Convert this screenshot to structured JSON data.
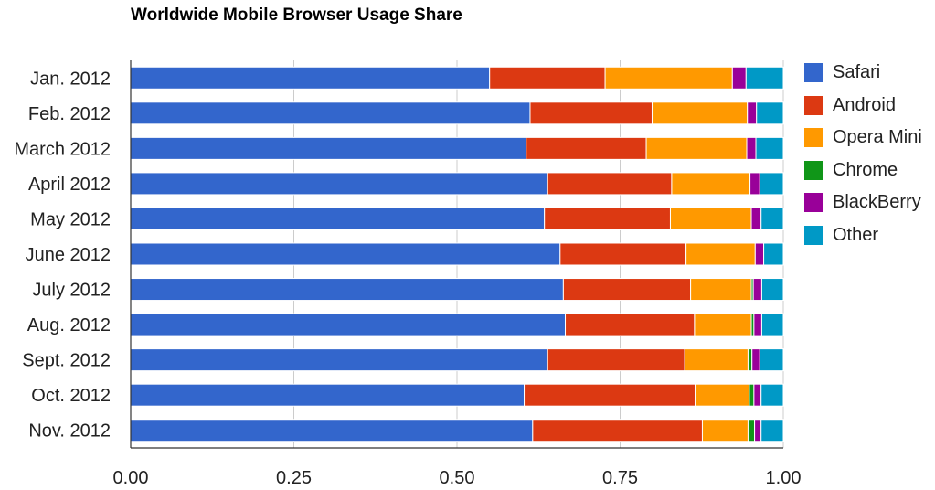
{
  "chart_data": {
    "type": "bar",
    "orientation": "horizontal",
    "stacked": true,
    "title": "Worldwide Mobile Browser Usage Share",
    "categories": [
      "Jan. 2012",
      "Feb. 2012",
      "March 2012",
      "April 2012",
      "May 2012",
      "June 2012",
      "July 2012",
      "Aug. 2012",
      "Sept. 2012",
      "Oct. 2012",
      "Nov. 2012"
    ],
    "xlim": [
      0,
      1
    ],
    "xticks": [
      "0.00",
      "0.25",
      "0.50",
      "0.75",
      "1.00"
    ],
    "xtick_values": [
      0,
      0.25,
      0.5,
      0.75,
      1
    ],
    "grid": true,
    "legend_position": "right",
    "series": [
      {
        "name": "Safari",
        "color": "#3366cc",
        "values": [
          0.55,
          0.612,
          0.606,
          0.639,
          0.634,
          0.658,
          0.663,
          0.666,
          0.639,
          0.603,
          0.616
        ]
      },
      {
        "name": "Android",
        "color": "#dc3912",
        "values": [
          0.177,
          0.187,
          0.184,
          0.19,
          0.193,
          0.193,
          0.195,
          0.198,
          0.21,
          0.262,
          0.26
        ]
      },
      {
        "name": "Opera Mini",
        "color": "#ff9900",
        "values": [
          0.195,
          0.146,
          0.154,
          0.12,
          0.124,
          0.106,
          0.093,
          0.087,
          0.097,
          0.083,
          0.07
        ]
      },
      {
        "name": "Chrome",
        "color": "#109618",
        "values": [
          0.0,
          0.0,
          0.0,
          0.0,
          0.0,
          0.0,
          0.003,
          0.004,
          0.006,
          0.007,
          0.01
        ]
      },
      {
        "name": "BlackBerry",
        "color": "#990099",
        "values": [
          0.021,
          0.014,
          0.014,
          0.015,
          0.015,
          0.013,
          0.013,
          0.012,
          0.012,
          0.011,
          0.01
        ]
      },
      {
        "name": "Other",
        "color": "#0099c6",
        "values": [
          0.057,
          0.041,
          0.042,
          0.036,
          0.034,
          0.03,
          0.033,
          0.033,
          0.036,
          0.034,
          0.034
        ]
      }
    ]
  }
}
